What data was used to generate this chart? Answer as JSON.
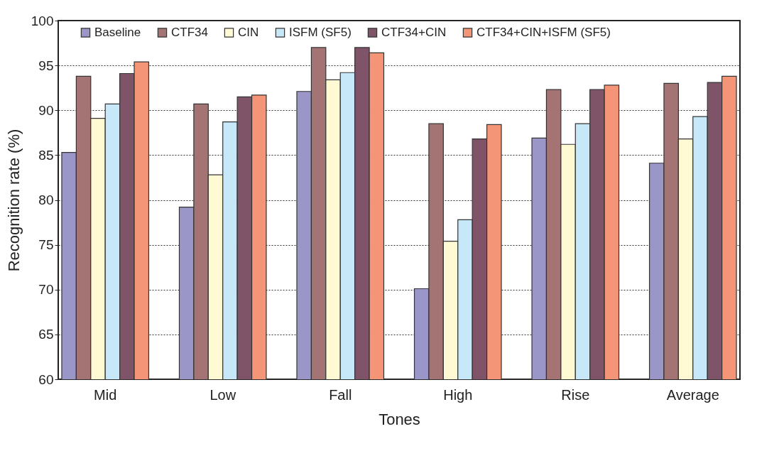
{
  "chart_data": {
    "type": "bar",
    "xlabel": "Tones",
    "ylabel": "Recognition rate (%)",
    "categories": [
      "Mid",
      "Low",
      "Fall",
      "High",
      "Rise",
      "Average"
    ],
    "series": [
      {
        "name": "Baseline",
        "color": "#9b96c8",
        "values": [
          85.3,
          79.2,
          92.1,
          70.1,
          86.9,
          84.1
        ]
      },
      {
        "name": "CTF34",
        "color": "#a47373",
        "values": [
          93.8,
          90.7,
          97.0,
          88.5,
          92.3,
          93.0
        ]
      },
      {
        "name": "CIN",
        "color": "#fff9d4",
        "values": [
          89.1,
          82.8,
          93.4,
          75.4,
          86.2,
          86.8
        ]
      },
      {
        "name": "ISFM (SF5)",
        "color": "#c6e8f8",
        "values": [
          90.7,
          88.7,
          94.2,
          77.8,
          88.5,
          89.3
        ]
      },
      {
        "name": "CTF34+CIN",
        "color": "#7f5468",
        "values": [
          94.1,
          91.5,
          97.0,
          86.8,
          92.3,
          93.1
        ]
      },
      {
        "name": "CTF34+CIN+ISFM (SF5)",
        "color": "#f49578",
        "values": [
          95.4,
          91.7,
          96.4,
          88.4,
          92.8,
          93.8
        ]
      }
    ],
    "ylim": [
      60,
      100
    ],
    "yticks": [
      60,
      65,
      70,
      75,
      80,
      85,
      90,
      95,
      100
    ],
    "grid": "y",
    "legend": "top"
  }
}
